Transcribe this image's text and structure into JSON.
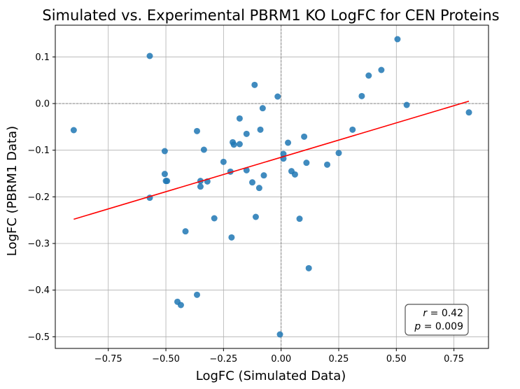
{
  "chart_data": {
    "type": "scatter",
    "title": "Simulated vs. Experimental PBRM1 KO LogFC for CEN Proteins",
    "xlabel": "LogFC (Simulated Data)",
    "ylabel": "LogFC (PBRM1 Data)",
    "xlim": [
      -0.98,
      0.9
    ],
    "ylim": [
      -0.525,
      0.168
    ],
    "xticks": [
      -0.75,
      -0.5,
      -0.25,
      0.0,
      0.25,
      0.5,
      0.75
    ],
    "xtick_labels": [
      "−0.75",
      "−0.50",
      "−0.25",
      "0.00",
      "0.25",
      "0.50",
      "0.75"
    ],
    "yticks": [
      -0.5,
      -0.4,
      -0.3,
      -0.2,
      -0.1,
      0.0,
      0.1
    ],
    "ytick_labels": [
      "−0.5",
      "−0.4",
      "−0.3",
      "−0.2",
      "−0.1",
      "0.0",
      "0.1"
    ],
    "grid": true,
    "reference_lines": {
      "x": 0,
      "y": 0
    },
    "point_color": "#1f77b4",
    "line_color": "#ff0000",
    "series": [
      {
        "points": [
          [
            -0.9,
            -0.057
          ],
          [
            -0.57,
            0.102
          ],
          [
            -0.57,
            -0.202
          ],
          [
            -0.505,
            -0.102
          ],
          [
            -0.505,
            -0.151
          ],
          [
            -0.5,
            -0.166
          ],
          [
            -0.495,
            -0.166
          ],
          [
            -0.415,
            -0.274
          ],
          [
            -0.45,
            -0.425
          ],
          [
            -0.435,
            -0.432
          ],
          [
            -0.365,
            -0.41
          ],
          [
            -0.365,
            -0.059
          ],
          [
            -0.35,
            -0.166
          ],
          [
            -0.35,
            -0.178
          ],
          [
            -0.335,
            -0.099
          ],
          [
            -0.32,
            -0.167
          ],
          [
            -0.29,
            -0.246
          ],
          [
            -0.25,
            -0.125
          ],
          [
            -0.22,
            -0.146
          ],
          [
            -0.215,
            -0.287
          ],
          [
            -0.21,
            -0.083
          ],
          [
            -0.205,
            -0.088
          ],
          [
            -0.18,
            -0.032
          ],
          [
            -0.18,
            -0.087
          ],
          [
            -0.15,
            -0.065
          ],
          [
            -0.15,
            -0.143
          ],
          [
            -0.125,
            -0.169
          ],
          [
            -0.115,
            0.04
          ],
          [
            -0.11,
            -0.243
          ],
          [
            -0.095,
            -0.181
          ],
          [
            -0.09,
            -0.056
          ],
          [
            -0.08,
            -0.01
          ],
          [
            -0.075,
            -0.154
          ],
          [
            -0.015,
            0.015
          ],
          [
            -0.005,
            -0.495
          ],
          [
            0.01,
            -0.118
          ],
          [
            0.01,
            -0.108
          ],
          [
            0.03,
            -0.084
          ],
          [
            0.045,
            -0.145
          ],
          [
            0.06,
            -0.152
          ],
          [
            0.08,
            -0.247
          ],
          [
            0.1,
            -0.071
          ],
          [
            0.11,
            -0.127
          ],
          [
            0.12,
            -0.353
          ],
          [
            0.2,
            -0.131
          ],
          [
            0.25,
            -0.106
          ],
          [
            0.31,
            -0.056
          ],
          [
            0.35,
            0.016
          ],
          [
            0.38,
            0.06
          ],
          [
            0.435,
            0.072
          ],
          [
            0.505,
            0.138
          ],
          [
            0.545,
            -0.003
          ],
          [
            0.815,
            -0.019
          ]
        ]
      }
    ],
    "regression_line": {
      "x": [
        -0.9,
        0.815
      ],
      "y": [
        -0.248,
        0.005
      ]
    },
    "annotations": [
      {
        "var": "r",
        "text": " = 0.42"
      },
      {
        "var": "p",
        "text": " = 0.009"
      }
    ]
  }
}
